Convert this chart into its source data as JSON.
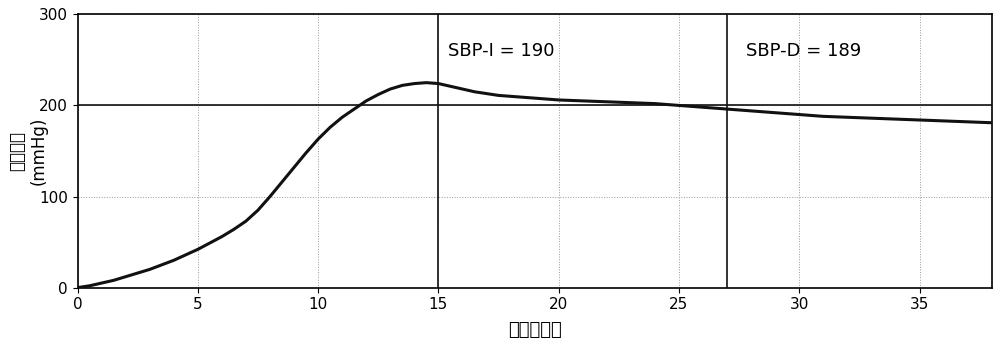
{
  "ylabel_line1": "变化压力",
  "ylabel_line2": "(mmHg)",
  "xlabel": "时间（秒）",
  "xlim": [
    0,
    38
  ],
  "ylim": [
    0,
    300
  ],
  "xticks": [
    0,
    5,
    10,
    15,
    20,
    25,
    30,
    35
  ],
  "yticks": [
    0,
    100,
    200,
    300
  ],
  "grid_color": "#999999",
  "line_color": "#111111",
  "vline1_x": 15,
  "vline2_x": 27,
  "hline_y": 200,
  "annotation1": "SBP-I = 190",
  "annotation2": "SBP-D = 189",
  "ann1_x": 15.4,
  "ann1_y": 260,
  "ann2_x": 27.8,
  "ann2_y": 260,
  "background_color": "#ffffff",
  "curve_x": [
    0,
    0.5,
    1,
    1.5,
    2,
    2.5,
    3,
    3.5,
    4,
    4.5,
    5,
    5.5,
    6,
    6.5,
    7,
    7.5,
    8,
    8.5,
    9,
    9.5,
    10,
    10.5,
    11,
    11.5,
    12,
    12.5,
    13,
    13.5,
    14,
    14.5,
    15,
    15.5,
    16,
    16.5,
    17,
    17.5,
    18,
    18.5,
    19,
    19.5,
    20,
    21,
    22,
    23,
    24,
    25,
    26,
    27,
    28,
    29,
    30,
    31,
    32,
    33,
    34,
    35,
    36,
    37,
    38
  ],
  "curve_y": [
    0,
    2,
    5,
    8,
    12,
    16,
    20,
    25,
    30,
    36,
    42,
    49,
    56,
    64,
    73,
    85,
    100,
    116,
    132,
    148,
    163,
    176,
    187,
    196,
    205,
    212,
    218,
    222,
    224,
    225,
    224,
    221,
    218,
    215,
    213,
    211,
    210,
    209,
    208,
    207,
    206,
    205,
    204,
    203,
    202,
    200,
    198,
    196,
    194,
    192,
    190,
    188,
    187,
    186,
    185,
    184,
    183,
    182,
    181
  ]
}
